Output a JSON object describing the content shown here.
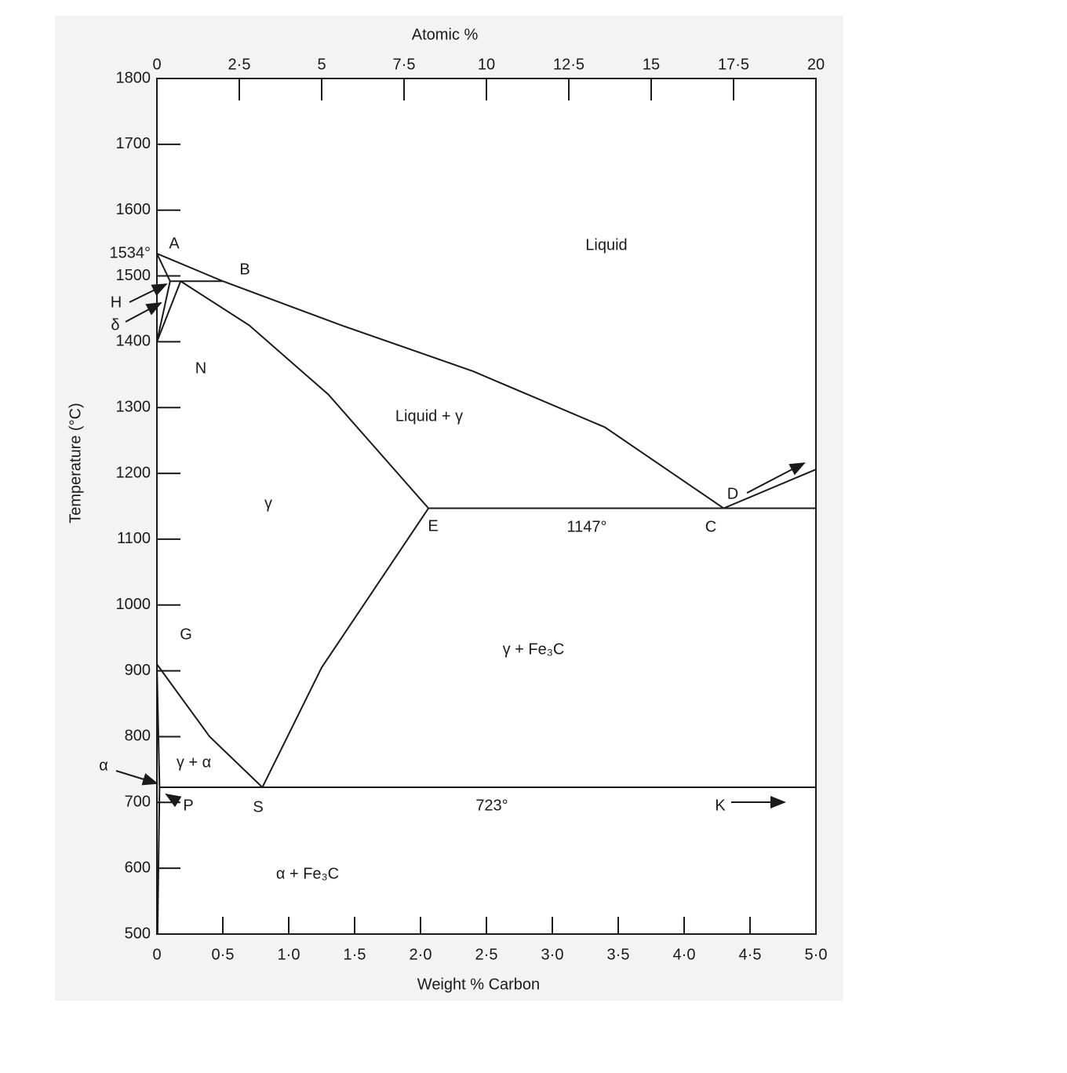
{
  "chart_data": {
    "type": "line",
    "x_label": "Weight % Carbon",
    "x2_label": "Atomic %",
    "y_label": "Temperature (°C)",
    "xlim": [
      0,
      5
    ],
    "xticks": [
      0,
      {
        "value": 0.5,
        "label": "0·5"
      },
      {
        "value": 1,
        "label": "1·0"
      },
      {
        "value": 1.5,
        "label": "1·5"
      },
      {
        "value": 2,
        "label": "2·0"
      },
      {
        "value": 2.5,
        "label": "2·5"
      },
      {
        "value": 3,
        "label": "3·0"
      },
      {
        "value": 3.5,
        "label": "3·5"
      },
      {
        "value": 4,
        "label": "4·0"
      },
      {
        "value": 4.5,
        "label": "4·5"
      },
      {
        "value": 5,
        "label": "5·0"
      }
    ],
    "x2lim": [
      0,
      20
    ],
    "x2ticks": [
      0,
      {
        "value": 2.5,
        "label": "2·5"
      },
      5,
      {
        "value": 7.5,
        "label": "7·5"
      },
      10,
      {
        "value": 12.5,
        "label": "12·5"
      },
      15,
      {
        "value": 17.5,
        "label": "17·5"
      },
      20
    ],
    "ylim": [
      500,
      1800
    ],
    "yticks": [
      500,
      600,
      700,
      800,
      900,
      1000,
      1100,
      1200,
      1300,
      1400,
      1500,
      {
        "value": 1534,
        "label": "1534°"
      },
      1600,
      1700,
      1800
    ],
    "grid": false,
    "color": "#1a1a1a",
    "series": [
      {
        "x": [
          0,
          0.5
        ],
        "values": [
          1534,
          1492
        ]
      },
      {
        "x": [
          0.5,
          1.4,
          2.4,
          3.4,
          4.3
        ],
        "values": [
          1492,
          1425,
          1355,
          1270,
          1147
        ]
      },
      {
        "x": [
          0.1,
          0.5
        ],
        "values": [
          1492,
          1492
        ]
      },
      {
        "x": [
          0,
          0.1
        ],
        "values": [
          1534,
          1492
        ]
      },
      {
        "x": [
          0.1,
          0
        ],
        "values": [
          1492,
          1400
        ]
      },
      {
        "x": [
          0.18,
          0
        ],
        "values": [
          1492,
          1400
        ]
      },
      {
        "x": [
          0.18,
          0.7,
          1.3,
          2.06
        ],
        "values": [
          1492,
          1425,
          1320,
          1147
        ]
      },
      {
        "x": [
          2.06,
          5
        ],
        "values": [
          1147,
          1147
        ]
      },
      {
        "x": [
          4.3,
          5
        ],
        "values": [
          1147,
          1206
        ]
      },
      {
        "x": [
          0,
          0.4,
          0.8
        ],
        "values": [
          910,
          800,
          723
        ]
      },
      {
        "x": [
          2.06,
          1.25,
          0.8
        ],
        "values": [
          1147,
          905,
          723
        ]
      },
      {
        "x": [
          0.02,
          5
        ],
        "values": [
          723,
          723
        ]
      },
      {
        "x": [
          0,
          0.02
        ],
        "values": [
          910,
          723
        ]
      },
      {
        "x": [
          0.02,
          0.005
        ],
        "values": [
          723,
          500
        ]
      }
    ],
    "annotations": [
      "A",
      "B",
      "H",
      "δ",
      "N",
      "G",
      "α",
      "P",
      "S",
      "E",
      "C",
      "D",
      "K",
      "Liquid",
      "Liquid + γ",
      "γ",
      "γ + Fe₃C",
      "α + Fe₃C",
      "γ + α",
      "1147°",
      "723°"
    ]
  }
}
